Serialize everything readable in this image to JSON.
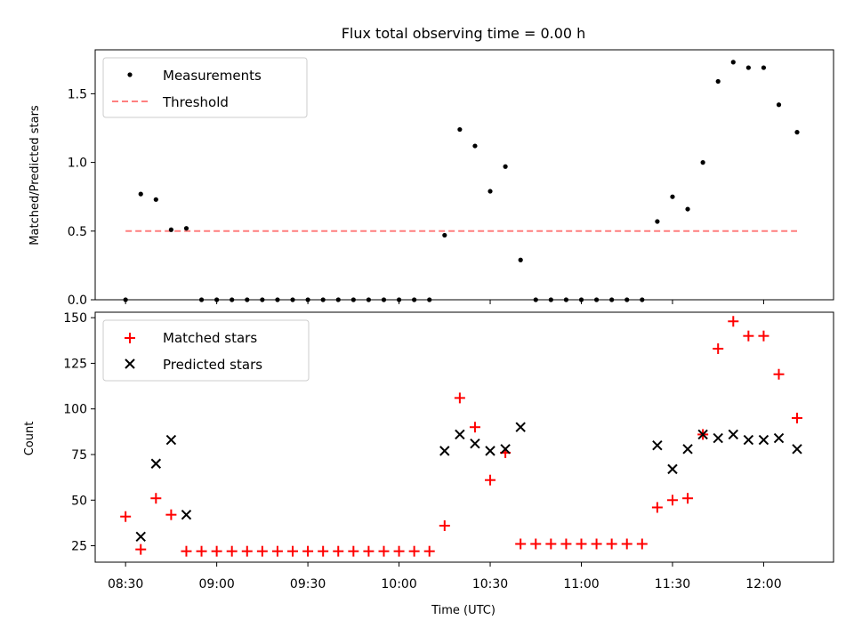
{
  "chart_data": [
    {
      "type": "scatter",
      "title": "Flux total observing time = 0.00 h",
      "xlabel": "",
      "ylabel": "Matched/Predicted stars",
      "ylim": [
        0,
        1.82
      ],
      "yticks": [
        "0.0",
        "0.5",
        "1.0",
        "1.5"
      ],
      "ytick_values": [
        0,
        0.5,
        1.0,
        1.5
      ],
      "legend": {
        "position": "top-left",
        "entries": [
          "Measurements",
          "Threshold"
        ]
      },
      "threshold": {
        "value": 0.5,
        "x_start": 510,
        "x_end": 731,
        "color": "#ff7f7f"
      },
      "series": [
        {
          "name": "Measurements",
          "color": "#000000",
          "x": [
            510,
            515,
            520,
            525,
            530,
            535,
            540,
            545,
            550,
            555,
            560,
            565,
            570,
            575,
            580,
            585,
            590,
            595,
            600,
            605,
            610,
            615,
            620,
            625,
            630,
            635,
            640,
            645,
            650,
            655,
            660,
            665,
            670,
            675,
            680,
            685,
            690,
            695,
            700,
            705,
            710,
            715,
            720,
            725,
            731
          ],
          "y": [
            0,
            0.77,
            0.73,
            0.51,
            0.52,
            0,
            0,
            0,
            0,
            0,
            0,
            0,
            0,
            0,
            0,
            0,
            0,
            0,
            0,
            0,
            0,
            0.47,
            1.24,
            1.12,
            0.79,
            0.97,
            0.29,
            0,
            0,
            0,
            0,
            0,
            0,
            0,
            0,
            0.57,
            0.75,
            0.66,
            1.0,
            1.59,
            1.73,
            1.69,
            1.69,
            1.42,
            1.22
          ]
        }
      ]
    },
    {
      "type": "scatter",
      "title": "",
      "xlabel": "Time (UTC)",
      "ylabel": "Count",
      "ylim": [
        16,
        153
      ],
      "xlim": [
        500,
        743
      ],
      "yticks": [
        "25",
        "50",
        "75",
        "100",
        "125",
        "150"
      ],
      "ytick_values": [
        25,
        50,
        75,
        100,
        125,
        150
      ],
      "xticks": [
        "08:30",
        "09:00",
        "09:30",
        "10:00",
        "10:30",
        "11:00",
        "11:30",
        "12:00"
      ],
      "xtick_values": [
        510,
        540,
        570,
        600,
        630,
        660,
        690,
        720
      ],
      "legend": {
        "position": "top-left",
        "entries": [
          "Matched stars",
          "Predicted stars"
        ]
      },
      "series": [
        {
          "name": "Matched stars",
          "marker": "+",
          "color": "#ff0000",
          "x": [
            510,
            515,
            520,
            525,
            530,
            535,
            540,
            545,
            550,
            555,
            560,
            565,
            570,
            575,
            580,
            585,
            590,
            595,
            600,
            605,
            610,
            615,
            620,
            625,
            630,
            635,
            640,
            645,
            650,
            655,
            660,
            665,
            670,
            675,
            680,
            685,
            690,
            695,
            700,
            705,
            710,
            715,
            720,
            725,
            731
          ],
          "y": [
            41,
            23,
            51,
            42,
            22,
            22,
            22,
            22,
            22,
            22,
            22,
            22,
            22,
            22,
            22,
            22,
            22,
            22,
            22,
            22,
            22,
            36,
            106,
            90,
            61,
            76,
            26,
            26,
            26,
            26,
            26,
            26,
            26,
            26,
            26,
            46,
            50,
            51,
            86,
            133,
            148,
            140,
            140,
            119,
            95
          ]
        },
        {
          "name": "Predicted stars",
          "marker": "x",
          "color": "#000000",
          "x": [
            515,
            520,
            525,
            530,
            615,
            620,
            625,
            630,
            635,
            640,
            685,
            690,
            695,
            700,
            705,
            710,
            715,
            720,
            725,
            731
          ],
          "y": [
            30,
            70,
            83,
            42,
            77,
            86,
            81,
            77,
            78,
            90,
            80,
            67,
            78,
            86,
            84,
            86,
            83,
            83,
            84,
            78
          ]
        }
      ]
    }
  ]
}
